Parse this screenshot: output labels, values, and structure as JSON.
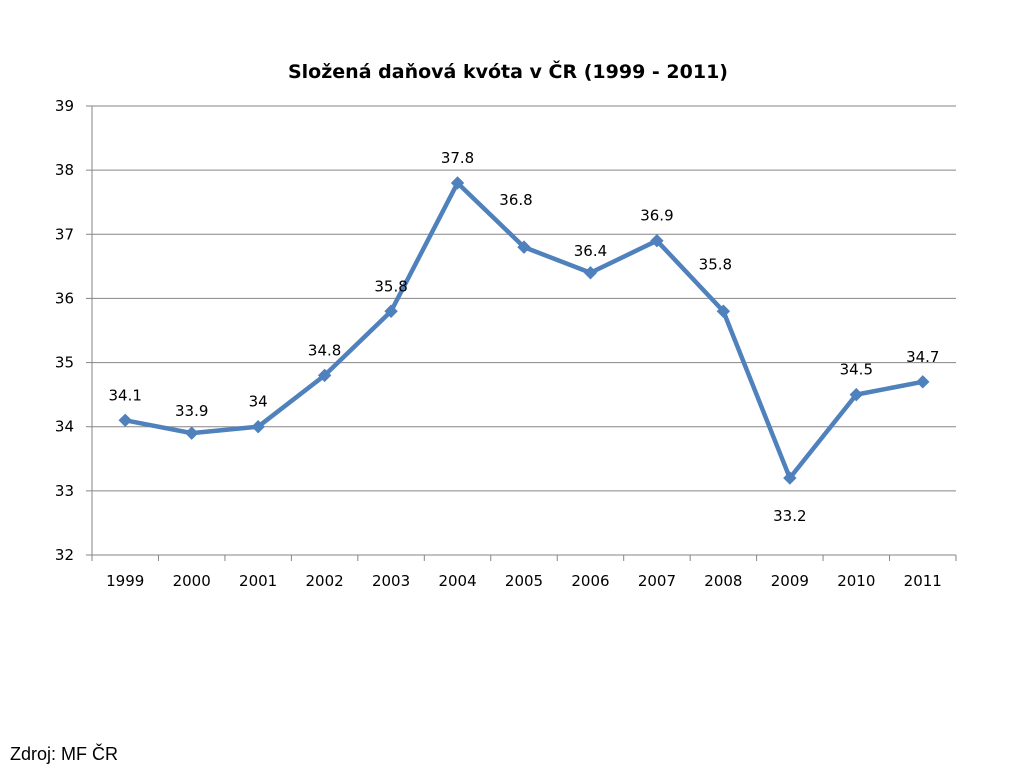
{
  "source": "Zdroj: MF ČR",
  "colors": {
    "line": "#4F81BD",
    "gridline": "#868686",
    "axis": "#868686"
  },
  "chart_data": {
    "type": "line",
    "title": "Složená daňová kvóta v ČR (1999 - 2011)",
    "xlabel": "",
    "ylabel": "",
    "categories": [
      "1999",
      "2000",
      "2001",
      "2002",
      "2003",
      "2004",
      "2005",
      "2006",
      "2007",
      "2008",
      "2009",
      "2010",
      "2011"
    ],
    "series": [
      {
        "values": [
          34.1,
          33.9,
          34,
          34.8,
          35.8,
          37.8,
          36.8,
          36.4,
          36.9,
          35.8,
          33.2,
          34.5,
          34.7
        ],
        "data_labels": [
          "34.1",
          "33.9",
          "34",
          "34.8",
          "35.8",
          "37.8",
          "36.8",
          "36.4",
          "36.9",
          "35.8",
          "33.2",
          "34.5",
          "34.7"
        ],
        "marker": "diamond"
      }
    ],
    "ylim": [
      32,
      39
    ],
    "yticks": [
      "32",
      "33",
      "34",
      "35",
      "36",
      "37",
      "38",
      "39"
    ],
    "grid": true,
    "legend": "none"
  }
}
